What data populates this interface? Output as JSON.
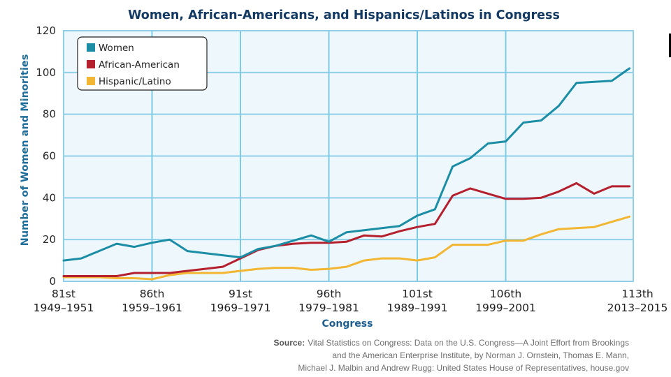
{
  "chart_data": {
    "type": "line",
    "title": "Women, African-Americans, and Hispanics/Latinos in Congress",
    "xlabel": "Congress",
    "ylabel": "Number of Women and Minorities",
    "ylim": [
      0,
      120
    ],
    "yticks": [
      0,
      20,
      40,
      60,
      80,
      100,
      120
    ],
    "grid": true,
    "legend_position": "top-left",
    "x": [
      81,
      82,
      83,
      84,
      85,
      86,
      87,
      88,
      89,
      90,
      91,
      92,
      93,
      94,
      95,
      96,
      97,
      98,
      99,
      100,
      101,
      102,
      103,
      104,
      105,
      106,
      107,
      108,
      109,
      110,
      111,
      112,
      113
    ],
    "xtick_labels": [
      {
        "congress": 81,
        "label": "81st",
        "years": "1949–1951"
      },
      {
        "congress": 86,
        "label": "86th",
        "years": "1959–1961"
      },
      {
        "congress": 91,
        "label": "91st",
        "years": "1969–1971"
      },
      {
        "congress": 96,
        "label": "96th",
        "years": "1979–1981"
      },
      {
        "congress": 101,
        "label": "101st",
        "years": "1989–1991"
      },
      {
        "congress": 106,
        "label": "106th",
        "years": "1999–2001"
      },
      {
        "congress": 113,
        "label": "113th",
        "years": "2013–2015"
      }
    ],
    "series": [
      {
        "name": "Women",
        "color": "#1b8ea6",
        "values": [
          10,
          11,
          14.5,
          18,
          16.5,
          18.5,
          20,
          14.5,
          13.5,
          12.5,
          11.5,
          15.5,
          17,
          19.5,
          22,
          19,
          23.5,
          24.5,
          25.5,
          26.5,
          31.5,
          34.5,
          55,
          59,
          66,
          67,
          76,
          77,
          84,
          95,
          95.5,
          96,
          102
        ]
      },
      {
        "name": "African-American",
        "color": "#b5202e",
        "values": [
          2.5,
          2.5,
          2.5,
          2.5,
          4,
          4,
          4,
          5,
          6,
          7,
          11,
          15,
          17,
          18,
          18.5,
          18.5,
          19,
          22,
          21.5,
          24,
          26,
          27.5,
          41,
          44.5,
          42,
          39.5,
          39.5,
          40,
          43,
          47,
          42,
          45.5,
          45.5
        ]
      },
      {
        "name": "Hispanic/Latino",
        "color": "#f2b632",
        "values": [
          2,
          2,
          2,
          1.5,
          1.5,
          1,
          3,
          4,
          4,
          4,
          5,
          6,
          6.5,
          6.5,
          5.5,
          6,
          7,
          10,
          11,
          11,
          10,
          11.5,
          17.5,
          17.5,
          17.5,
          19.5,
          19.5,
          22.5,
          25,
          25.5,
          26,
          28.5,
          31
        ]
      }
    ],
    "source": {
      "label": "Source:",
      "lines": [
        "Vital Statistics on Congress: Data on the U.S. Congress—A Joint Effort from Brookings",
        "and the American Enterprise Institute, by Norman J. Ornstein, Thomas E. Mann,",
        "Michael J. Malbin and Andrew Rugg: United States House of Representatives, house.gov"
      ]
    }
  }
}
